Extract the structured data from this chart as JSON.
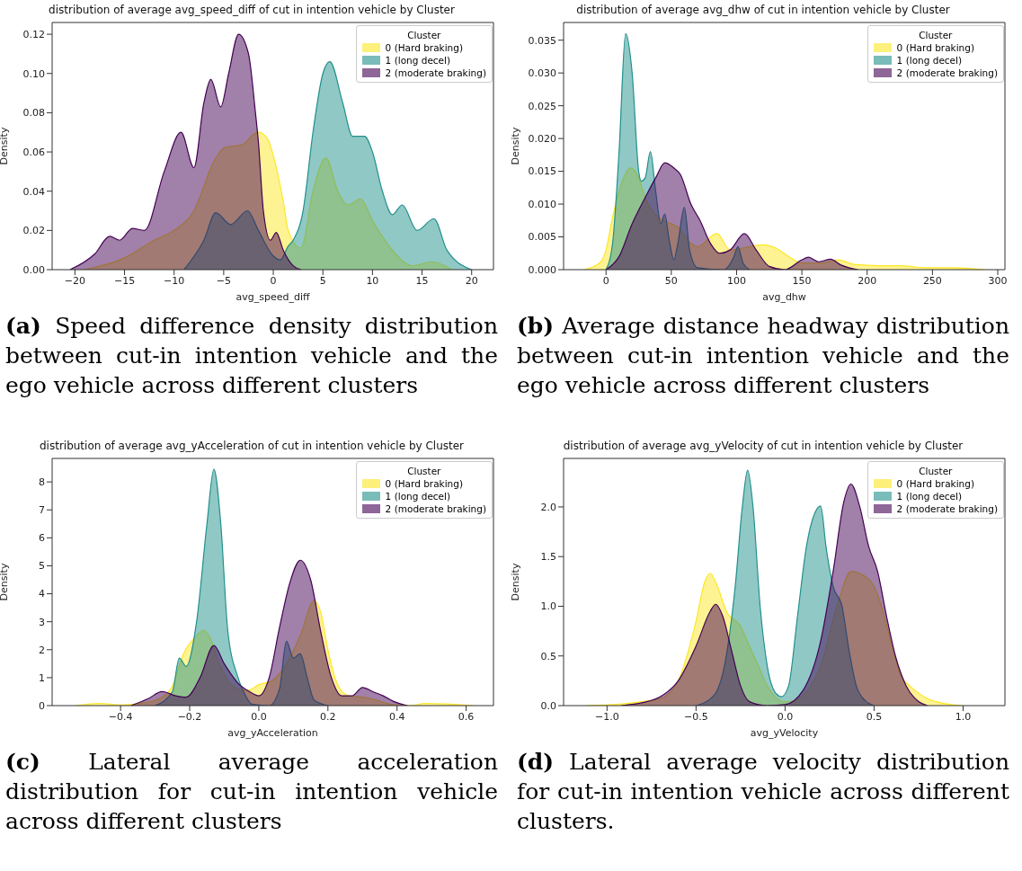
{
  "chart_data": [
    {
      "type": "area",
      "title": "distribution of average avg_speed_diff of cut in intention vehicle by Cluster",
      "xlabel": "avg_speed_diff",
      "ylabel": "Density",
      "legend_title": "Cluster",
      "legend": "top right",
      "grid": false,
      "xlim": [
        -22.3,
        22.2
      ],
      "xticks": [
        {
          "value": -20,
          "label": "−20"
        },
        {
          "value": -15,
          "label": "−15"
        },
        {
          "value": -10,
          "label": "−10"
        },
        {
          "value": -5,
          "label": "−5"
        },
        0,
        5,
        10,
        15,
        20
      ],
      "ylim": [
        0,
        0.126
      ],
      "yticks": [
        {
          "value": 0,
          "label": "0.00"
        },
        {
          "value": 0.02,
          "label": "0.02"
        },
        {
          "value": 0.04,
          "label": "0.04"
        },
        {
          "value": 0.06,
          "label": "0.06"
        },
        {
          "value": 0.08,
          "label": "0.08"
        },
        {
          "value": 0.1,
          "label": "0.10"
        },
        {
          "value": 0.12,
          "label": "0.12"
        }
      ],
      "annotations": [
        "(a) Speed difference density distribution between cut-in intention vehicle and the ego vehicle across different clusters"
      ],
      "series": [
        {
          "name": "0 (Hard braking)",
          "color": "#fde725",
          "x": [
            -19,
            -15,
            -12,
            -10,
            -8,
            -6,
            -5,
            -3,
            -2,
            -1.5,
            -0.5,
            0,
            1,
            1.5,
            2.8,
            4,
            5.3,
            6.5,
            7.5,
            8.8,
            10,
            12,
            14,
            16,
            18
          ],
          "values": [
            0,
            0.006,
            0.015,
            0.02,
            0.03,
            0.055,
            0.062,
            0.064,
            0.069,
            0.07,
            0.066,
            0.058,
            0.035,
            0.02,
            0.011,
            0.04,
            0.057,
            0.04,
            0.033,
            0.036,
            0.025,
            0.01,
            0.002,
            0.004,
            0
          ]
        },
        {
          "name": "1 (long decel)",
          "color": "#21918c",
          "x": [
            -9,
            -7,
            -5.8,
            -4.3,
            -2.6,
            -1.5,
            0,
            0.7,
            1.5,
            2,
            3,
            4,
            5,
            5.7,
            7,
            8,
            9.2,
            10,
            11,
            12,
            13,
            14.5,
            16.2,
            17.5,
            20
          ],
          "values": [
            0,
            0.015,
            0.029,
            0.023,
            0.03,
            0.02,
            0.007,
            0.005,
            0.012,
            0.015,
            0.03,
            0.07,
            0.1,
            0.106,
            0.085,
            0.068,
            0.068,
            0.06,
            0.04,
            0.028,
            0.033,
            0.02,
            0.026,
            0.01,
            0
          ]
        },
        {
          "name": "2 (moderate braking)",
          "color": "#440154",
          "x": [
            -20.5,
            -18,
            -16.5,
            -15.5,
            -14.2,
            -13,
            -11,
            -9.3,
            -8,
            -7,
            -6.3,
            -5.3,
            -4.5,
            -3.5,
            -2.5,
            -1.8,
            -1.5,
            -1,
            -0.3,
            0.3,
            1,
            2,
            2.8
          ],
          "values": [
            0,
            0.008,
            0.017,
            0.015,
            0.021,
            0.02,
            0.05,
            0.07,
            0.052,
            0.085,
            0.097,
            0.083,
            0.1,
            0.12,
            0.11,
            0.08,
            0.065,
            0.03,
            0.015,
            0.019,
            0.01,
            0.002,
            0
          ]
        }
      ]
    },
    {
      "type": "area",
      "title": "distribution of average avg_dhw of cut in intention vehicle by Cluster",
      "xlabel": "avg_dhw",
      "ylabel": "Density",
      "legend_title": "Cluster",
      "legend": "top right",
      "grid": false,
      "xlim": [
        -32.5,
        305.5
      ],
      "xticks": [
        0,
        50,
        100,
        150,
        200,
        250,
        300
      ],
      "ylim": [
        0,
        0.0377
      ],
      "yticks": [
        {
          "value": 0,
          "label": "0.000"
        },
        0.005,
        {
          "value": 0.01,
          "label": "0.010"
        },
        0.015,
        {
          "value": 0.02,
          "label": "0.020"
        },
        0.025,
        {
          "value": 0.03,
          "label": "0.030"
        },
        0.035
      ],
      "annotations": [
        "(b) Average distance headway distribution between cut-in intention vehicle and the ego vehicle across different clusters"
      ],
      "series": [
        {
          "name": "0 (Hard braking)",
          "color": "#fde725",
          "x": [
            -17,
            -5,
            0,
            5,
            10,
            19,
            25,
            30,
            40,
            50,
            55,
            65,
            70,
            85,
            95,
            105,
            120,
            130,
            140,
            150,
            165,
            178,
            190,
            210,
            225,
            245,
            265,
            290
          ],
          "values": [
            0,
            0.001,
            0.003,
            0.008,
            0.012,
            0.0155,
            0.014,
            0.011,
            0.008,
            0.007,
            0.0065,
            0.004,
            0.0035,
            0.0055,
            0.003,
            0.0033,
            0.0038,
            0.0033,
            0.002,
            0.001,
            0.001,
            0.0015,
            0.0008,
            0.0006,
            0.0006,
            0.0003,
            0.0003,
            0
          ]
        },
        {
          "name": "1 (long decel)",
          "color": "#21918c",
          "x": [
            0,
            5,
            10,
            15,
            20,
            25,
            27,
            30,
            34,
            38,
            42,
            45,
            48,
            52,
            55,
            60,
            64,
            70,
            90,
            98,
            101,
            105,
            110
          ],
          "values": [
            0,
            0.004,
            0.018,
            0.036,
            0.03,
            0.015,
            0.0135,
            0.014,
            0.018,
            0.012,
            0.007,
            0.0085,
            0.005,
            0.0015,
            0.004,
            0.0095,
            0.003,
            0.0003,
            0,
            0.002,
            0.0035,
            0.001,
            0
          ]
        },
        {
          "name": "2 (moderate braking)",
          "color": "#440154",
          "x": [
            0,
            10,
            20,
            30,
            38,
            45,
            52,
            57,
            65,
            72,
            80,
            87,
            95,
            106,
            115,
            125,
            137,
            150,
            155,
            163,
            172,
            180,
            193
          ],
          "values": [
            0,
            0.002,
            0.007,
            0.011,
            0.014,
            0.0163,
            0.0155,
            0.0145,
            0.01,
            0.0075,
            0.004,
            0.0025,
            0.003,
            0.0055,
            0.003,
            0.0005,
            0,
            0.0015,
            0.0019,
            0.0012,
            0.0016,
            0.0007,
            0
          ]
        }
      ]
    },
    {
      "type": "area",
      "title": "distribution of average avg_yAcceleration of cut in intention vehicle by Cluster",
      "xlabel": "avg_yAcceleration",
      "ylabel": "Density",
      "legend_title": "Cluster",
      "legend": "top right",
      "grid": false,
      "xlim": [
        -0.598,
        0.679
      ],
      "xticks": [
        {
          "value": -0.4,
          "label": "−0.4"
        },
        {
          "value": -0.2,
          "label": "−0.2"
        },
        {
          "value": 0,
          "label": "0.0"
        },
        0.2,
        0.4,
        0.6
      ],
      "ylim": [
        0,
        8.84
      ],
      "yticks": [
        0,
        1,
        2,
        3,
        4,
        5,
        6,
        7,
        8
      ],
      "annotations": [
        "(c) Lateral average acceleration distribution for cut-in intention vehicle across different clusters"
      ],
      "series": [
        {
          "name": "0 (Hard braking)",
          "color": "#fde725",
          "x": [
            -0.53,
            -0.46,
            -0.4,
            -0.33,
            -0.28,
            -0.25,
            -0.22,
            -0.18,
            -0.16,
            -0.14,
            -0.12,
            -0.09,
            -0.06,
            -0.03,
            0,
            0.04,
            0.08,
            0.12,
            0.16,
            0.18,
            0.2,
            0.23,
            0.26,
            0.3,
            0.34,
            0.38,
            0.44,
            0.48,
            0.54,
            0.62
          ],
          "values": [
            0,
            0.08,
            0.02,
            0.1,
            0.3,
            0.7,
            1.8,
            2.5,
            2.7,
            2.4,
            1.7,
            0.9,
            0.6,
            0.55,
            0.75,
            0.9,
            1.5,
            2.5,
            3.75,
            3.3,
            2,
            0.7,
            0.35,
            0.3,
            0.2,
            0.05,
            0,
            0.08,
            0.06,
            0
          ]
        },
        {
          "name": "1 (long decel)",
          "color": "#21918c",
          "x": [
            -0.3,
            -0.25,
            -0.23,
            -0.21,
            -0.18,
            -0.15,
            -0.13,
            -0.11,
            -0.09,
            -0.06,
            -0.04,
            -0.02,
            0.03,
            0.06,
            0.08,
            0.1,
            0.12,
            0.14,
            0.16,
            0.2
          ],
          "values": [
            0,
            0.5,
            1.7,
            1.4,
            3,
            6.5,
            8.45,
            6.5,
            2.7,
            1,
            0.4,
            0.05,
            0,
            0.6,
            2.3,
            1.7,
            1.85,
            1,
            0.2,
            0
          ]
        },
        {
          "name": "2 (moderate braking)",
          "color": "#440154",
          "x": [
            -0.37,
            -0.32,
            -0.28,
            -0.24,
            -0.21,
            -0.17,
            -0.13,
            -0.1,
            -0.06,
            -0.02,
            0,
            0.03,
            0.06,
            0.09,
            0.12,
            0.15,
            0.18,
            0.21,
            0.24,
            0.27,
            0.3,
            0.33,
            0.36,
            0.39,
            0.43
          ],
          "values": [
            0,
            0.25,
            0.5,
            0.35,
            0.3,
            1,
            2.15,
            1.5,
            0.8,
            0.45,
            0.35,
            1,
            2.8,
            4.4,
            5.2,
            4.5,
            2.6,
            1,
            0.35,
            0.35,
            0.65,
            0.5,
            0.35,
            0.15,
            0
          ]
        }
      ]
    },
    {
      "type": "area",
      "title": "distribution of average avg_yVelocity of cut in intention vehicle by Cluster",
      "xlabel": "avg_yVelocity",
      "ylabel": "Density",
      "legend_title": "Cluster",
      "legend": "top right",
      "grid": false,
      "xlim": [
        -1.244,
        1.235
      ],
      "xticks": [
        {
          "value": -1,
          "label": "−1.0"
        },
        {
          "value": -0.5,
          "label": "−0.5"
        },
        {
          "value": 0,
          "label": "0.0"
        },
        0.5,
        {
          "value": 1,
          "label": "1.0"
        }
      ],
      "ylim": [
        0,
        2.488
      ],
      "yticks": [
        {
          "value": 0,
          "label": "0.0"
        },
        0.5,
        {
          "value": 1,
          "label": "1.0"
        },
        1.5,
        {
          "value": 2,
          "label": "2.0"
        }
      ],
      "annotations": [
        "(d) Lateral average velocity distribution for cut-in intention vehicle across different clusters."
      ],
      "series": [
        {
          "name": "0 (Hard braking)",
          "color": "#fde725",
          "x": [
            -1.12,
            -0.9,
            -0.8,
            -0.7,
            -0.6,
            -0.5,
            -0.45,
            -0.42,
            -0.38,
            -0.33,
            -0.25,
            -0.2,
            -0.15,
            -0.1,
            -0.05,
            0,
            0.05,
            0.1,
            0.2,
            0.3,
            0.37,
            0.45,
            0.5,
            0.55,
            0.6,
            0.65,
            0.7,
            0.8,
            0.9,
            1
          ],
          "values": [
            0,
            0.02,
            0.04,
            0.07,
            0.25,
            0.85,
            1.25,
            1.33,
            1.2,
            0.95,
            0.8,
            0.6,
            0.4,
            0.2,
            0.08,
            0.04,
            0.05,
            0.1,
            0.4,
            1.05,
            1.35,
            1.3,
            1.2,
            0.95,
            0.6,
            0.3,
            0.2,
            0.07,
            0.02,
            0
          ]
        },
        {
          "name": "1 (long decel)",
          "color": "#21918c",
          "x": [
            -0.5,
            -0.4,
            -0.33,
            -0.28,
            -0.24,
            -0.21,
            -0.18,
            -0.14,
            -0.1,
            -0.05,
            -0.02,
            0.02,
            0.07,
            0.12,
            0.17,
            0.2,
            0.23,
            0.27,
            0.32,
            0.36,
            0.4,
            0.45,
            0.5
          ],
          "values": [
            0,
            0.1,
            0.5,
            1.2,
            2,
            2.37,
            2,
            1,
            0.4,
            0.12,
            0.09,
            0.2,
            0.9,
            1.6,
            1.95,
            2.01,
            1.6,
            1.2,
            1,
            0.55,
            0.2,
            0.05,
            0
          ]
        },
        {
          "name": "2 (moderate braking)",
          "color": "#440154",
          "x": [
            -0.92,
            -0.8,
            -0.7,
            -0.6,
            -0.5,
            -0.42,
            -0.39,
            -0.35,
            -0.3,
            -0.25,
            -0.2,
            -0.1,
            0,
            0.1,
            0.2,
            0.27,
            0.33,
            0.37,
            0.42,
            0.47,
            0.52,
            0.57,
            0.62,
            0.68,
            0.75,
            0.8
          ],
          "values": [
            0,
            0.03,
            0.09,
            0.25,
            0.6,
            0.95,
            1.02,
            0.9,
            0.55,
            0.2,
            0.04,
            0,
            0.01,
            0.15,
            0.65,
            1.35,
            2.05,
            2.23,
            2,
            1.6,
            1.35,
            0.9,
            0.5,
            0.2,
            0.04,
            0
          ]
        }
      ]
    }
  ]
}
